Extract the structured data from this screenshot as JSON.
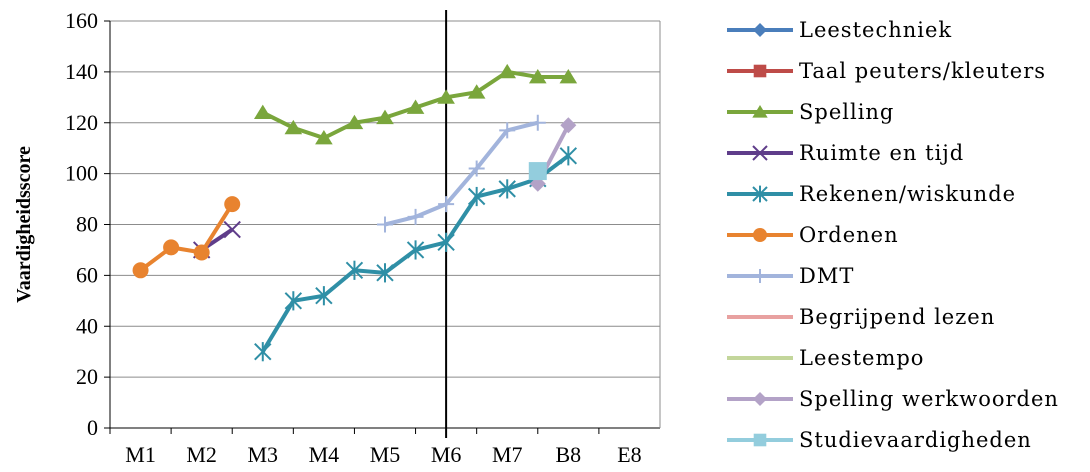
{
  "chart_data": {
    "type": "line",
    "title": "",
    "xlabel": "",
    "ylabel": "Vaardigheidsscore",
    "categories": [
      "M1",
      "M2",
      "M3",
      "M4",
      "M5",
      "M6",
      "M7",
      "B8",
      "E8"
    ],
    "ylim": [
      0,
      160
    ],
    "yticks": [
      0,
      20,
      40,
      60,
      80,
      100,
      120,
      140,
      160
    ],
    "grid": true,
    "vertical_marker_at": "M6",
    "legend_position": "right",
    "series": [
      {
        "name": "Leestechniek",
        "color": "#4a7ebb",
        "marker": "diamond",
        "points": []
      },
      {
        "name": "Taal peuters/kleuters",
        "color": "#be4b48",
        "marker": "square",
        "points": []
      },
      {
        "name": "Spelling",
        "color": "#7aa63c",
        "marker": "triangle",
        "points": [
          [
            3,
            124
          ],
          [
            3.5,
            118
          ],
          [
            4,
            114
          ],
          [
            4.5,
            120
          ],
          [
            5,
            122
          ],
          [
            5.5,
            126
          ],
          [
            6,
            130
          ],
          [
            6.5,
            132
          ],
          [
            7,
            140
          ],
          [
            7.5,
            138
          ],
          [
            8,
            138
          ]
        ]
      },
      {
        "name": "Ruimte en tijd",
        "color": "#5f3d8a",
        "marker": "x",
        "points": [
          [
            2,
            70
          ],
          [
            2.5,
            78
          ]
        ]
      },
      {
        "name": "Rekenen/wiskunde",
        "color": "#2f8fa6",
        "marker": "asterisk",
        "points": [
          [
            3,
            30
          ],
          [
            3.5,
            50
          ],
          [
            4,
            52
          ],
          [
            4.5,
            62
          ],
          [
            5,
            61
          ],
          [
            5.5,
            70
          ],
          [
            6,
            73
          ],
          [
            6.5,
            91
          ],
          [
            7,
            94
          ],
          [
            7.5,
            98
          ],
          [
            8,
            107
          ]
        ]
      },
      {
        "name": "Ordenen",
        "color": "#e8832f",
        "marker": "circle",
        "points": [
          [
            1,
            62
          ],
          [
            1.5,
            71
          ],
          [
            2,
            69
          ],
          [
            2.5,
            88
          ]
        ]
      },
      {
        "name": "DMT",
        "color": "#a2b4dc",
        "marker": "plus",
        "points": [
          [
            5,
            80
          ],
          [
            5.5,
            83
          ],
          [
            6,
            88
          ],
          [
            6.5,
            102
          ],
          [
            7,
            117
          ],
          [
            7.5,
            120
          ]
        ]
      },
      {
        "name": "Begrijpend lezen",
        "color": "#e8a1a0",
        "marker": "none",
        "points": []
      },
      {
        "name": "Leestempo",
        "color": "#c3d69b",
        "marker": "none",
        "points": []
      },
      {
        "name": "Spelling werkwoorden",
        "color": "#b3a2c7",
        "marker": "diamond",
        "points": [
          [
            7.5,
            96
          ],
          [
            8,
            119
          ]
        ]
      },
      {
        "name": "Studievaardigheden",
        "color": "#93cddd",
        "marker": "square",
        "points": [
          [
            7.5,
            101
          ]
        ]
      }
    ]
  }
}
